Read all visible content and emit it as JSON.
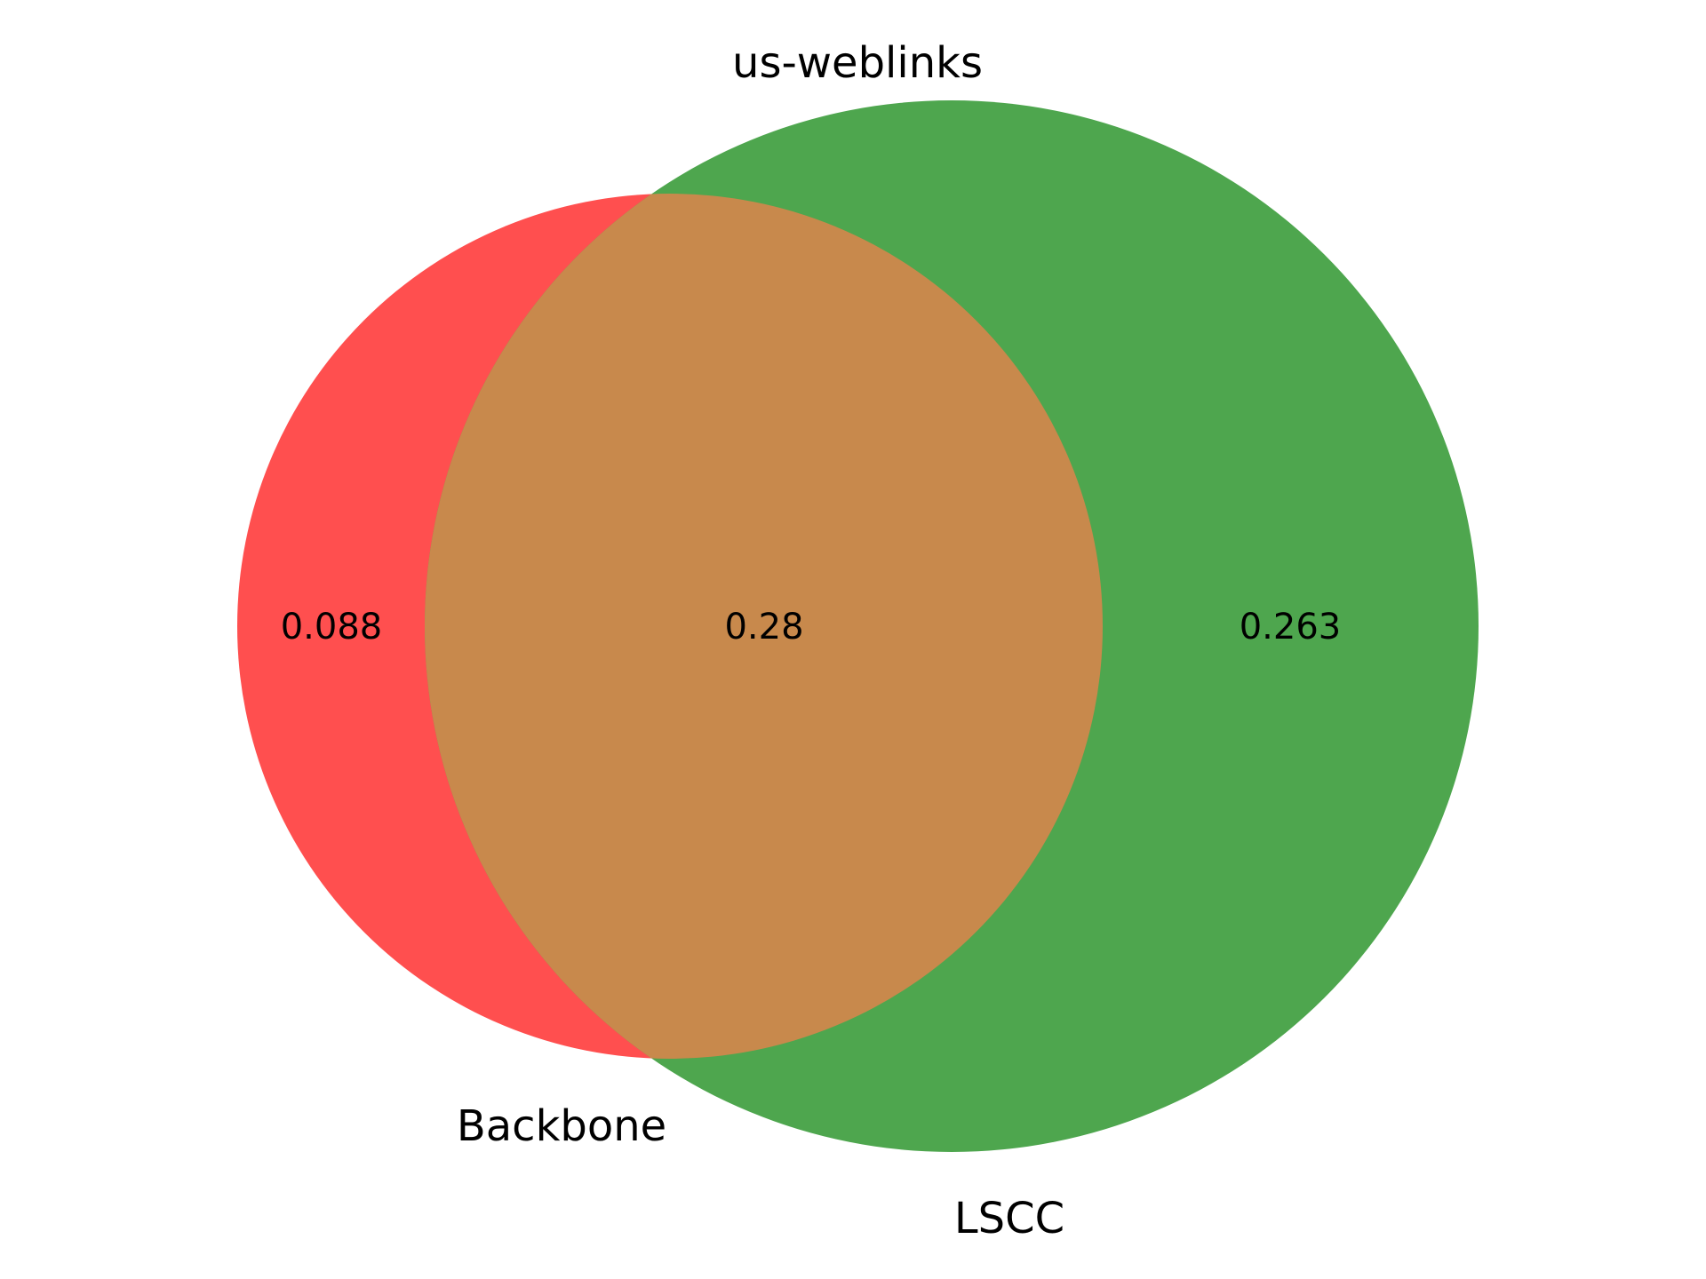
{
  "title": "us-weblinks",
  "sets": [
    {
      "name": "Backbone",
      "color": "#ff4f4f"
    },
    {
      "name": "LSCC",
      "color": "#4ea64e"
    }
  ],
  "regions": {
    "backbone_only": "0.088",
    "intersection": "0.28",
    "lscc_only": "0.263"
  },
  "intersection_color": "#c8894c"
}
